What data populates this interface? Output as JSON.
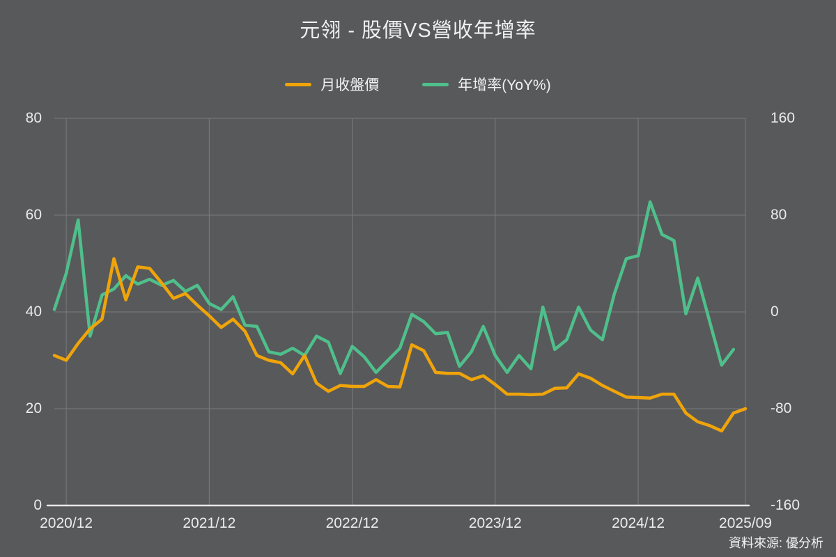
{
  "title": "元翎 - 股價VS營收年增率",
  "legend": {
    "items": [
      {
        "label": "月收盤價",
        "color": "#EFA40A"
      },
      {
        "label": "年增率(YoY%)",
        "color": "#4FBF8B"
      }
    ]
  },
  "source_note": "資料來源: 優分析",
  "colors": {
    "background": "#58595B",
    "text": "#F0F0F0",
    "grid": "#7A7B7E",
    "axis_line": "#E8E8E8",
    "price_line": "#EFA40A",
    "yoy_line": "#4FBF8B"
  },
  "chart_data": {
    "type": "line",
    "title": "元翎 - 股價VS營收年增率",
    "legend_position": "top",
    "grid": true,
    "categories": [
      "2020/11",
      "2020/12",
      "2021/01",
      "2021/02",
      "2021/03",
      "2021/04",
      "2021/05",
      "2021/06",
      "2021/07",
      "2021/08",
      "2021/09",
      "2021/10",
      "2021/11",
      "2021/12",
      "2022/01",
      "2022/02",
      "2022/03",
      "2022/04",
      "2022/05",
      "2022/06",
      "2022/07",
      "2022/08",
      "2022/09",
      "2022/10",
      "2022/11",
      "2022/12",
      "2023/01",
      "2023/02",
      "2023/03",
      "2023/04",
      "2023/05",
      "2023/06",
      "2023/07",
      "2023/08",
      "2023/09",
      "2023/10",
      "2023/11",
      "2023/12",
      "2024/01",
      "2024/02",
      "2024/03",
      "2024/04",
      "2024/05",
      "2024/06",
      "2024/07",
      "2024/08",
      "2024/09",
      "2024/10",
      "2024/11",
      "2024/12",
      "2025/01",
      "2025/02",
      "2025/03",
      "2025/04",
      "2025/05",
      "2025/06",
      "2025/07",
      "2025/08",
      "2025/09"
    ],
    "series": [
      {
        "name": "月收盤價",
        "yaxis": "left",
        "color": "#EFA40A",
        "values": [
          31,
          30,
          33.5,
          36.5,
          38.5,
          51,
          42.5,
          49.3,
          49,
          46,
          42.8,
          43.8,
          41.4,
          39.2,
          36.8,
          38.5,
          36,
          31,
          30,
          29.5,
          27.2,
          31,
          25.3,
          23.6,
          24.8,
          24.6,
          24.6,
          26,
          24.6,
          24.5,
          33.2,
          32,
          27.5,
          27.3,
          27.3,
          26,
          26.8,
          25,
          23,
          23,
          22.9,
          23,
          24.2,
          24.3,
          27.2,
          26.3,
          24.8,
          23.6,
          22.4,
          22.3,
          22.2,
          23,
          23,
          19.1,
          17.3,
          16.5,
          15.4,
          19.1,
          20
        ]
      },
      {
        "name": "年增率(YoY%)",
        "yaxis": "right",
        "color": "#4FBF8B",
        "values": [
          2,
          32,
          76,
          -20,
          14,
          19,
          30,
          23,
          27,
          22,
          26,
          17,
          22,
          7,
          2,
          12.5,
          -11,
          -12,
          -33,
          -35,
          -30,
          -36,
          -20,
          -25,
          -51,
          -28.5,
          -37,
          -50,
          -40,
          -30,
          -2,
          -8,
          -18,
          -17,
          -45,
          -33,
          -12,
          -36,
          -50,
          -36,
          -47,
          4,
          -31,
          -23,
          4,
          -15,
          -23,
          15,
          44,
          46.5,
          91,
          64,
          59,
          -1.5,
          28,
          -8,
          -44,
          -31,
          null
        ]
      }
    ],
    "y_left": {
      "label": "",
      "ticks": [
        80,
        60,
        40,
        20,
        0
      ],
      "min": 0,
      "max": 80
    },
    "y_right": {
      "label": "",
      "ticks": [
        160,
        80,
        0,
        -80,
        -160
      ],
      "min": -160,
      "max": 160
    },
    "x_gridline_categories": [
      "2020/12",
      "2021/12",
      "2022/12",
      "2023/12",
      "2024/12",
      "2025/09"
    ]
  }
}
